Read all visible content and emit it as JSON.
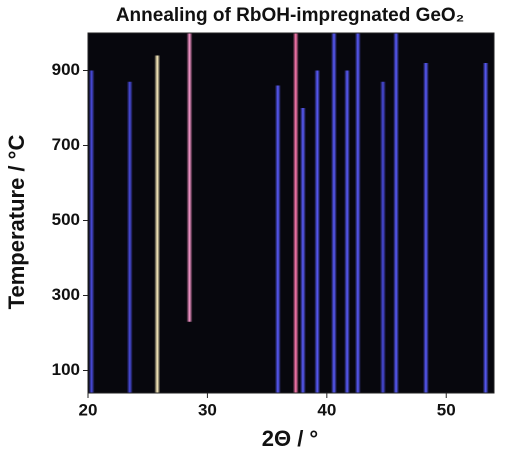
{
  "chart_data": {
    "type": "stripes",
    "title": "Annealing of RbOH-impregnated GeO₂",
    "x_label": "2Θ / °",
    "y_label": "Temperature / °C",
    "x": [
      20.3,
      23.5,
      25.8,
      28.5,
      35.9,
      37.4,
      38.0,
      39.2,
      40.6,
      41.7,
      42.6,
      44.7,
      45.8,
      48.3,
      53.3
    ],
    "ystart": [
      40,
      40,
      40,
      230,
      40,
      40,
      40,
      40,
      40,
      40,
      40,
      40,
      40,
      40,
      40
    ],
    "yend": [
      900,
      870,
      940,
      1000,
      860,
      1000,
      800,
      900,
      1000,
      900,
      1000,
      870,
      1000,
      920,
      920
    ],
    "colors": [
      "#4a4ce0",
      "#4a4ce0",
      "#fff0c0",
      "#ff9ad0",
      "#5a5cff",
      "#ff7ab0",
      "#5a5cff",
      "#5a5cff",
      "#5a5cff",
      "#5a5cff",
      "#5a5cff",
      "#4a4ce0",
      "#5a5cff",
      "#5a5cff",
      "#5a5cff"
    ],
    "background": "#07070d",
    "xlim": [
      20,
      54
    ],
    "xticks": [
      20,
      30,
      40,
      50
    ],
    "ylim": [
      40,
      1000
    ],
    "yticks": [
      100,
      300,
      500,
      700,
      900
    ]
  }
}
